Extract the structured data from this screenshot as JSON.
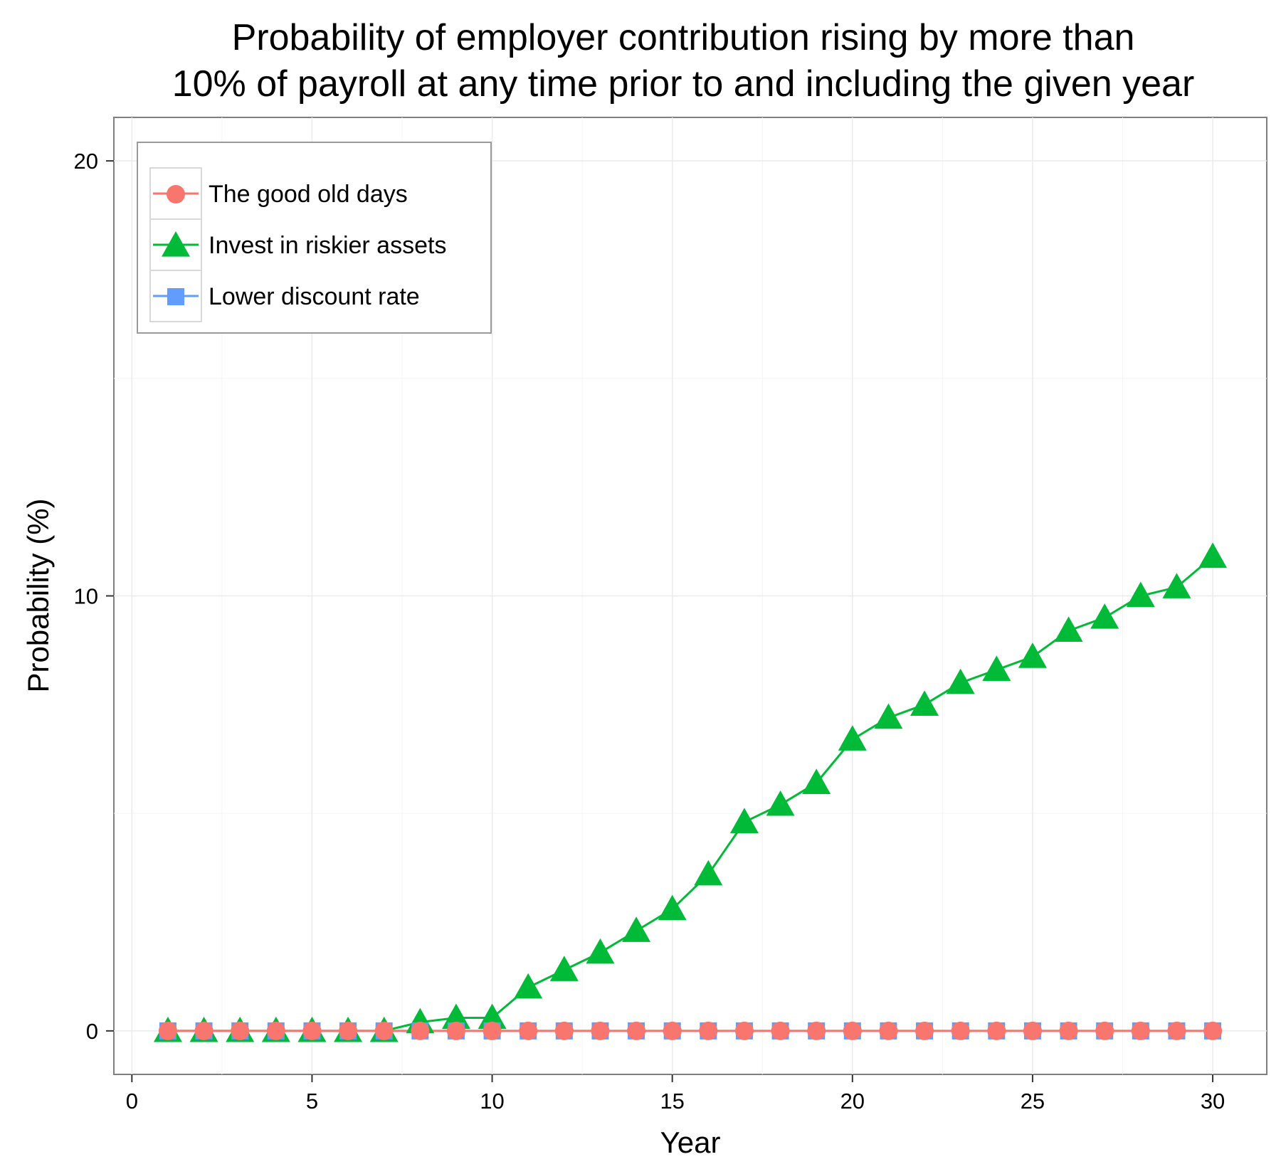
{
  "chart_data": {
    "type": "line",
    "title_lines": [
      "Probability of employer contribution rising by more than",
      "10% of payroll at any time prior to and including the given year"
    ],
    "xlabel": "Year",
    "ylabel": "Probability (%)",
    "xlim": [
      -0.5,
      31.5
    ],
    "ylim": [
      -1,
      21
    ],
    "x_ticks": [
      0,
      5,
      10,
      15,
      20,
      25,
      30
    ],
    "y_ticks": [
      0,
      10,
      20
    ],
    "x_tick_labels": [
      "0",
      "5",
      "10",
      "15",
      "20",
      "25",
      "30"
    ],
    "y_tick_labels": [
      "0",
      "10",
      "20"
    ],
    "grid": true,
    "legend_position": "top-left",
    "x": [
      1,
      2,
      3,
      4,
      5,
      6,
      7,
      8,
      9,
      10,
      11,
      12,
      13,
      14,
      15,
      16,
      17,
      18,
      19,
      20,
      21,
      22,
      23,
      24,
      25,
      26,
      27,
      28,
      29,
      30
    ],
    "series": [
      {
        "name": "The good old days",
        "color": "#F8766D",
        "marker": "circle",
        "values": [
          0,
          0,
          0,
          0,
          0,
          0,
          0,
          0,
          0,
          0,
          0,
          0,
          0,
          0,
          0,
          0,
          0,
          0,
          0,
          0,
          0,
          0,
          0,
          0,
          0,
          0,
          0,
          0,
          0,
          0
        ]
      },
      {
        "name": "Invest in riskier assets",
        "color": "#00BA38",
        "marker": "triangle",
        "values": [
          0,
          0,
          0,
          0,
          0,
          0,
          0,
          0.2,
          0.3,
          0.3,
          1.0,
          1.4,
          1.8,
          2.3,
          2.8,
          3.6,
          4.8,
          5.2,
          5.7,
          6.7,
          7.2,
          7.5,
          8.0,
          8.3,
          8.6,
          9.2,
          9.5,
          10.0,
          10.2,
          10.9
        ]
      },
      {
        "name": "Lower discount rate",
        "color": "#619CFF",
        "marker": "square",
        "values": [
          0,
          0,
          0,
          0,
          0,
          0,
          0,
          0,
          0,
          0,
          0,
          0,
          0,
          0,
          0,
          0,
          0,
          0,
          0,
          0,
          0,
          0,
          0,
          0,
          0,
          0,
          0,
          0,
          0,
          0
        ]
      }
    ]
  }
}
